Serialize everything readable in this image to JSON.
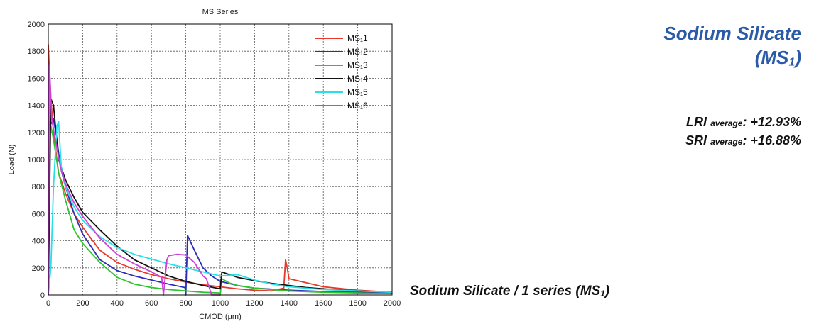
{
  "chart_data": {
    "type": "line",
    "title": "MS Series",
    "xlabel": "CMOD (µm)",
    "ylabel": "Load (N)",
    "xlim": [
      0,
      2000
    ],
    "ylim": [
      0,
      2000
    ],
    "xticks": [
      "0",
      "200",
      "400",
      "600",
      "800",
      "1000",
      "1200",
      "1400",
      "1600",
      "1800",
      "2000"
    ],
    "yticks": [
      "0",
      "200",
      "400",
      "600",
      "800",
      "1000",
      "1200",
      "1400",
      "1600",
      "1800",
      "2000"
    ],
    "grid": true,
    "legend": "top-right",
    "series": [
      {
        "name": "MS₁1",
        "color": "#e8382a",
        "x": [
          0,
          5,
          15,
          30,
          60,
          100,
          150,
          200,
          300,
          400,
          500,
          600,
          700,
          800,
          900,
          1000,
          1100,
          1200,
          1300,
          1370,
          1380,
          1390,
          1400,
          1500,
          1600,
          1800,
          2000
        ],
        "y": [
          1850,
          1700,
          1450,
          1200,
          900,
          750,
          600,
          500,
          330,
          240,
          190,
          150,
          120,
          95,
          75,
          60,
          45,
          35,
          30,
          50,
          260,
          200,
          120,
          90,
          60,
          35,
          20
        ]
      },
      {
        "name": "MS₁2",
        "color": "#2b2bb8",
        "x": [
          0,
          10,
          30,
          50,
          70,
          100,
          150,
          200,
          300,
          400,
          500,
          600,
          700,
          795,
          800,
          810,
          850,
          900,
          950,
          1000,
          1100,
          1200,
          1400,
          1600,
          2000
        ],
        "y": [
          0,
          1250,
          1300,
          1150,
          950,
          800,
          600,
          450,
          260,
          180,
          140,
          110,
          80,
          55,
          0,
          440,
          330,
          200,
          140,
          100,
          70,
          50,
          35,
          25,
          15
        ]
      },
      {
        "name": "MS₁3",
        "color": "#2ec42e",
        "x": [
          0,
          10,
          30,
          60,
          100,
          150,
          200,
          300,
          400,
          500,
          600,
          700,
          800,
          900,
          995,
          1000,
          1010,
          1050,
          1100,
          1200,
          1400,
          1600,
          2000
        ],
        "y": [
          0,
          1280,
          1150,
          900,
          700,
          480,
          380,
          240,
          130,
          80,
          55,
          40,
          30,
          20,
          15,
          0,
          120,
          90,
          70,
          50,
          30,
          20,
          10
        ]
      },
      {
        "name": "MS₁4",
        "color": "#111111",
        "x": [
          0,
          15,
          30,
          60,
          100,
          150,
          200,
          300,
          400,
          500,
          600,
          700,
          800,
          900,
          1000,
          1010,
          1030,
          1100,
          1200,
          1300,
          1400,
          1500,
          1600,
          1800,
          2000
        ],
        "y": [
          0,
          1450,
          1400,
          1000,
          850,
          720,
          610,
          480,
          360,
          260,
          200,
          140,
          100,
          70,
          45,
          170,
          160,
          130,
          105,
          85,
          70,
          55,
          45,
          30,
          20
        ]
      },
      {
        "name": "MS₁5",
        "color": "#28e0e8",
        "x": [
          0,
          15,
          30,
          50,
          60,
          75,
          100,
          150,
          200,
          300,
          400,
          500,
          600,
          700,
          800,
          900,
          1000,
          1100,
          1200,
          1300,
          1400,
          1600,
          1800,
          2000
        ],
        "y": [
          0,
          200,
          800,
          1250,
          1280,
          950,
          800,
          650,
          550,
          430,
          350,
          300,
          265,
          230,
          200,
          170,
          140,
          150,
          110,
          80,
          60,
          40,
          30,
          20
        ]
      },
      {
        "name": "MS₁6",
        "color": "#d040d8",
        "x": [
          0,
          5,
          10,
          20,
          40,
          70,
          100,
          150,
          200,
          300,
          400,
          500,
          600,
          660,
          670,
          690,
          700,
          750,
          800,
          850,
          880,
          900,
          920,
          950,
          1000
        ],
        "y": [
          0,
          1700,
          1600,
          1300,
          1150,
          950,
          820,
          680,
          580,
          420,
          300,
          230,
          170,
          130,
          0,
          260,
          290,
          300,
          295,
          240,
          180,
          140,
          120,
          0,
          0
        ]
      }
    ]
  },
  "side": {
    "title_line1": "Sodium Silicate",
    "title_line2_pre": "(MS",
    "title_line2_sub": "1",
    "title_line2_post": ")",
    "lri_label": "LRI",
    "lri_sub": "average",
    "lri_value": ": +12.93%",
    "sri_label": "SRI",
    "sri_sub": "average",
    "sri_value": ": +16.88%"
  },
  "caption": {
    "pre": "Sodium Silicate / 1 series (MS",
    "sub": "1",
    "post": ")"
  }
}
